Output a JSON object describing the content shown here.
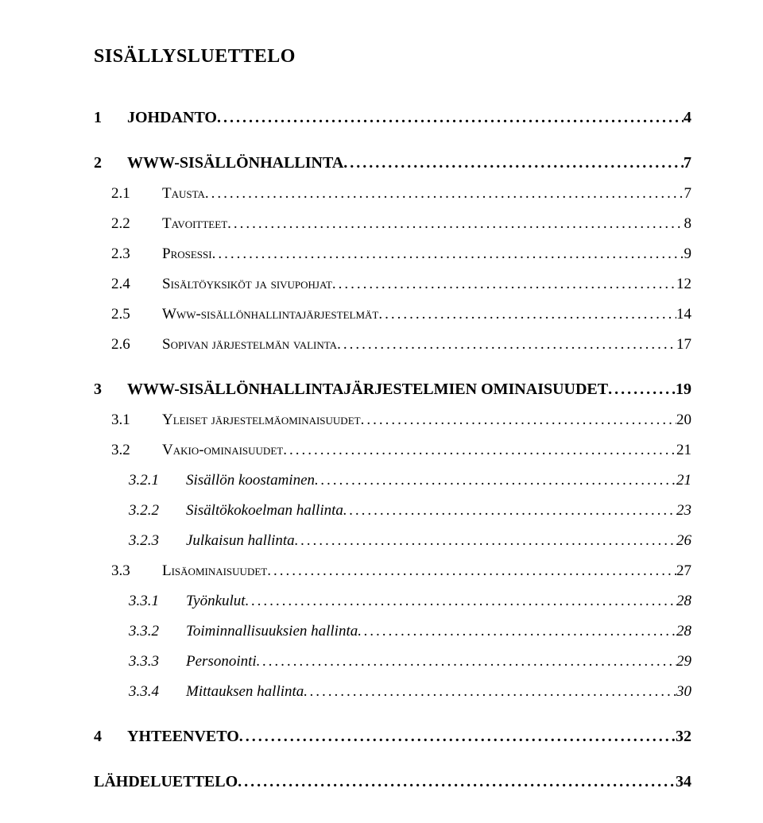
{
  "title": "SISÄLLYSLUETTELO",
  "entries": [
    {
      "level": "lvl1",
      "num": "1",
      "label": "JOHDANTO",
      "page": "4"
    },
    {
      "level": "lvl1",
      "num": "2",
      "label": "WWW-SISÄLLÖNHALLINTA",
      "page": "7"
    },
    {
      "level": "lvl2",
      "num": "2.1",
      "label": "Tausta",
      "page": "7"
    },
    {
      "level": "lvl2",
      "num": "2.2",
      "label": "Tavoitteet",
      "page": "8"
    },
    {
      "level": "lvl2",
      "num": "2.3",
      "label": "Prosessi",
      "page": "9"
    },
    {
      "level": "lvl2",
      "num": "2.4",
      "label": "Sisältöyksiköt ja sivupohjat",
      "page": "12"
    },
    {
      "level": "lvl2",
      "num": "2.5",
      "label": "Www-sisällönhallintajärjestelmät",
      "page": "14"
    },
    {
      "level": "lvl2",
      "num": "2.6",
      "label": "Sopivan järjestelmän valinta",
      "page": "17"
    },
    {
      "level": "lvl1",
      "num": "3",
      "label": "WWW-SISÄLLÖNHALLINTAJÄRJESTELMIEN OMINAISUUDET",
      "page": "19"
    },
    {
      "level": "lvl2",
      "num": "3.1",
      "label": "Yleiset järjestelmäominaisuudet",
      "page": "20"
    },
    {
      "level": "lvl2",
      "num": "3.2",
      "label": "Vakio-ominaisuudet",
      "page": "21"
    },
    {
      "level": "lvl3",
      "num": "3.2.1",
      "label": "Sisällön koostaminen",
      "page": "21"
    },
    {
      "level": "lvl3",
      "num": "3.2.2",
      "label": "Sisältökokoelman hallinta",
      "page": "23"
    },
    {
      "level": "lvl3",
      "num": "3.2.3",
      "label": "Julkaisun hallinta",
      "page": "26"
    },
    {
      "level": "lvl2",
      "num": "3.3",
      "label": "Lisäominaisuudet",
      "page": "27"
    },
    {
      "level": "lvl3",
      "num": "3.3.1",
      "label": "Työnkulut",
      "page": "28"
    },
    {
      "level": "lvl3",
      "num": "3.3.2",
      "label": "Toiminnallisuuksien hallinta",
      "page": "28"
    },
    {
      "level": "lvl3",
      "num": "3.3.3",
      "label": "Personointi",
      "page": "29"
    },
    {
      "level": "lvl3",
      "num": "3.3.4",
      "label": "Mittauksen hallinta",
      "page": "30"
    },
    {
      "level": "lvl1",
      "num": "4",
      "label": "YHTEENVETO",
      "page": "32"
    },
    {
      "level": "nonum",
      "num": "",
      "label": "LÄHDELUETTELO",
      "page": "34"
    }
  ]
}
